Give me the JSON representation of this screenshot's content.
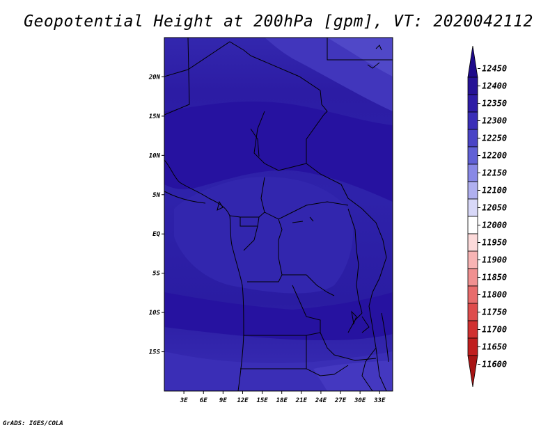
{
  "title": "Geopotential Height at 200hPa [gpm], VT: 2020042112",
  "footer": "GrADS: IGES/COLA",
  "map": {
    "lon_range": [
      0,
      35
    ],
    "lat_range": [
      -20,
      25
    ],
    "x_ticks": [
      "3E",
      "6E",
      "9E",
      "12E",
      "15E",
      "18E",
      "21E",
      "24E",
      "27E",
      "30E",
      "33E"
    ],
    "x_tick_values": [
      3,
      6,
      9,
      12,
      15,
      18,
      21,
      24,
      27,
      30,
      33
    ],
    "y_ticks": [
      "20N",
      "15N",
      "10N",
      "5N",
      "EQ",
      "5S",
      "10S",
      "15S"
    ],
    "y_tick_values": [
      20,
      15,
      10,
      5,
      0,
      -5,
      -10,
      -15
    ]
  },
  "colorbar": {
    "levels": [
      "12450",
      "12400",
      "12350",
      "12300",
      "12250",
      "12200",
      "12150",
      "12100",
      "12050",
      "12000",
      "11950",
      "11900",
      "11850",
      "11800",
      "11750",
      "11700",
      "11650",
      "11600"
    ],
    "colors": [
      "#1e0a8a",
      "#261296",
      "#2e1ca6",
      "#3a2eb8",
      "#4a44c6",
      "#6060d6",
      "#8888e6",
      "#b0b0f0",
      "#d8d8f8",
      "#ffffff",
      "#fcdada",
      "#f8b4b4",
      "#f09090",
      "#e86c6c",
      "#de4c4c",
      "#d03030",
      "#c01e1e",
      "#a81414"
    ]
  }
}
